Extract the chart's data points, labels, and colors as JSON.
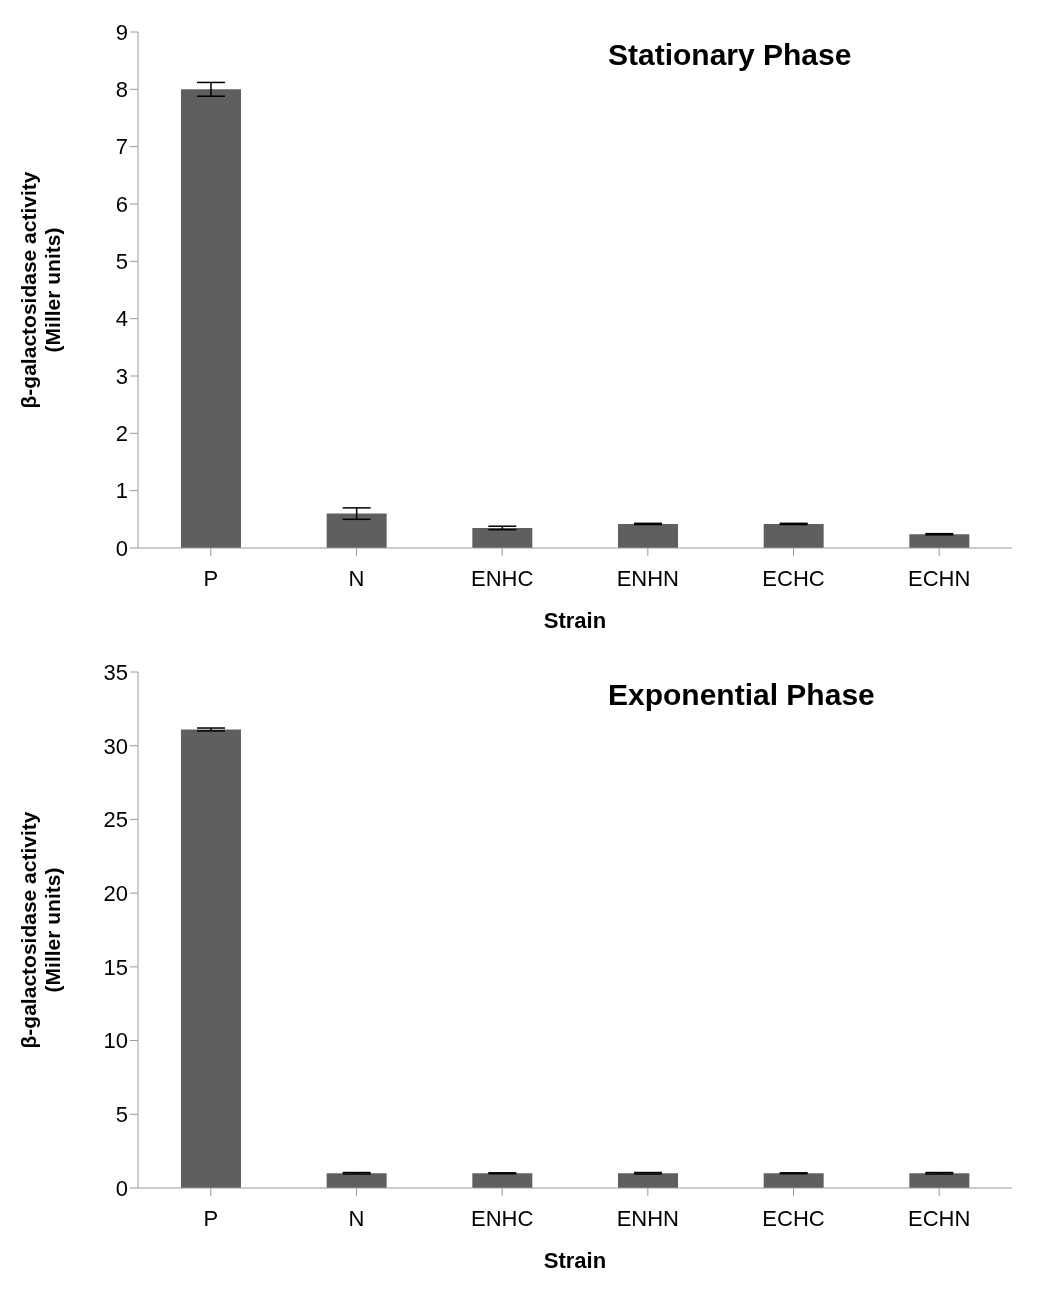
{
  "chart_data": [
    {
      "type": "bar",
      "title": "Stationary Phase",
      "xlabel": "Strain",
      "ylabel": "β-galactosidase activity\n(Miller units)",
      "categories": [
        "P",
        "N",
        "ENHC",
        "ENHN",
        "ECHC",
        "ECHN"
      ],
      "values": [
        8.0,
        0.6,
        0.35,
        0.42,
        0.42,
        0.24
      ],
      "errors": [
        0.12,
        0.1,
        0.03,
        0.01,
        0.01,
        0.01
      ],
      "color": "#5f5f5f",
      "ylim": [
        0,
        9
      ],
      "yticks": [
        0,
        1,
        2,
        3,
        4,
        5,
        6,
        7,
        8,
        9
      ],
      "grid": false,
      "legend": false
    },
    {
      "type": "bar",
      "title": "Exponential Phase",
      "xlabel": "Strain",
      "ylabel": "β-galactosidase activity\n(Miller units)",
      "categories": [
        "P",
        "N",
        "ENHC",
        "ENHN",
        "ECHC",
        "ECHN"
      ],
      "values": [
        31.1,
        1.0,
        1.0,
        1.0,
        1.0,
        1.0
      ],
      "errors": [
        0.1,
        0.05,
        0.03,
        0.05,
        0.03,
        0.05
      ],
      "color": "#5f5f5f",
      "ylim": [
        0,
        35
      ],
      "yticks": [
        0,
        5,
        10,
        15,
        20,
        25,
        30,
        35
      ],
      "grid": false,
      "legend": false
    }
  ]
}
